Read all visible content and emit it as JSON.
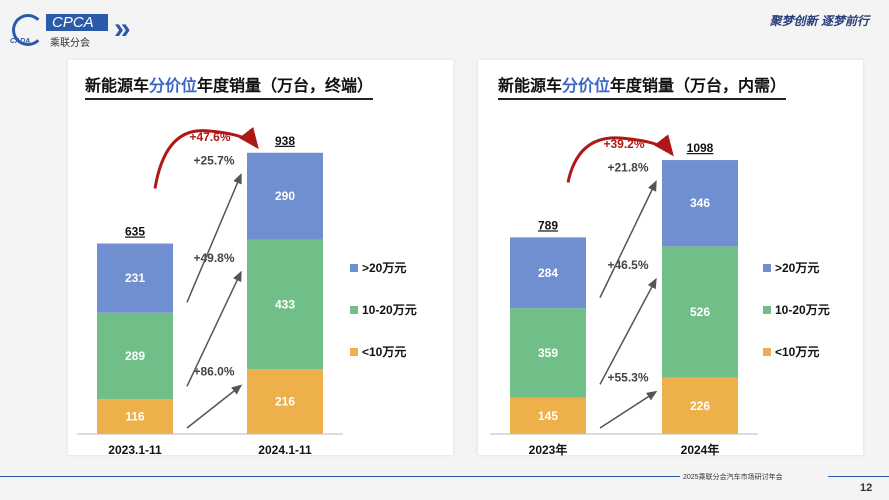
{
  "header": {
    "logo_text": "CPCA",
    "logo_sub": "乘联分会",
    "logo_small": "CADA",
    "slogan": "聚梦创新 逐梦前行"
  },
  "footer": {
    "text": "2025乘联分会汽车市场研讨年会",
    "page": "12"
  },
  "colors": {
    ">20万元": "#6f8fd0",
    "10-20万元": "#70bf88",
    "<10万元": "#eeb04a",
    "growth_curve": "#b01818"
  },
  "chart_data": [
    {
      "type": "bar",
      "stacked": true,
      "title_parts": [
        "新能源车",
        "分价位",
        "年度销量（万台，终端）"
      ],
      "categories": [
        "2023.1-11",
        "2024.1-11"
      ],
      "series": [
        {
          "name": "<10万元",
          "values": [
            116,
            216
          ]
        },
        {
          "name": "10-20万元",
          "values": [
            289,
            433
          ]
        },
        {
          "name": ">20万元",
          "values": [
            231,
            290
          ]
        }
      ],
      "totals": [
        635,
        938
      ],
      "total_growth": "+47.6%",
      "segment_growth": [
        "+86.0%",
        "+49.8%",
        "+25.7%"
      ],
      "legend": "right"
    },
    {
      "type": "bar",
      "stacked": true,
      "title_parts": [
        "新能源车",
        "分价位",
        "年度销量（万台，内需）"
      ],
      "categories": [
        "2023年",
        "2024年"
      ],
      "series": [
        {
          "name": "<10万元",
          "values": [
            145,
            226
          ]
        },
        {
          "name": "10-20万元",
          "values": [
            359,
            526
          ]
        },
        {
          "name": ">20万元",
          "values": [
            284,
            346
          ]
        }
      ],
      "totals": [
        789,
        1098
      ],
      "total_growth": "+39.2%",
      "segment_growth": [
        "+55.3%",
        "+46.5%",
        "+21.8%"
      ],
      "legend": "right"
    }
  ]
}
